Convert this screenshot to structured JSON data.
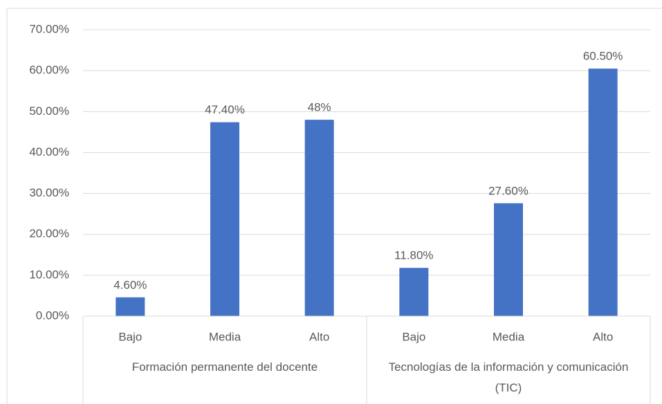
{
  "chart_data": {
    "type": "bar",
    "color": "#4472c4",
    "grid": true,
    "ylim": [
      0,
      70
    ],
    "yticks": [
      {
        "value": 0,
        "label": "0.00%"
      },
      {
        "value": 10,
        "label": "10.00%"
      },
      {
        "value": 20,
        "label": "20.00%"
      },
      {
        "value": 30,
        "label": "30.00%"
      },
      {
        "value": 40,
        "label": "40.00%"
      },
      {
        "value": 50,
        "label": "50.00%"
      },
      {
        "value": 60,
        "label": "60.00%"
      },
      {
        "value": 70,
        "label": "70.00%"
      }
    ],
    "groups": [
      {
        "label": "Formación permanente del docente",
        "categories": [
          "Bajo",
          "Media",
          "Alto"
        ],
        "values": [
          4.6,
          47.4,
          48
        ],
        "value_labels": [
          "4.60%",
          "47.40%",
          "48%"
        ]
      },
      {
        "label": "Tecnologías de la información y comunicación (TIC)",
        "categories": [
          "Bajo",
          "Media",
          "Alto"
        ],
        "values": [
          11.8,
          27.6,
          60.5
        ],
        "value_labels": [
          "11.80%",
          "27.60%",
          "60.50%"
        ]
      }
    ]
  }
}
